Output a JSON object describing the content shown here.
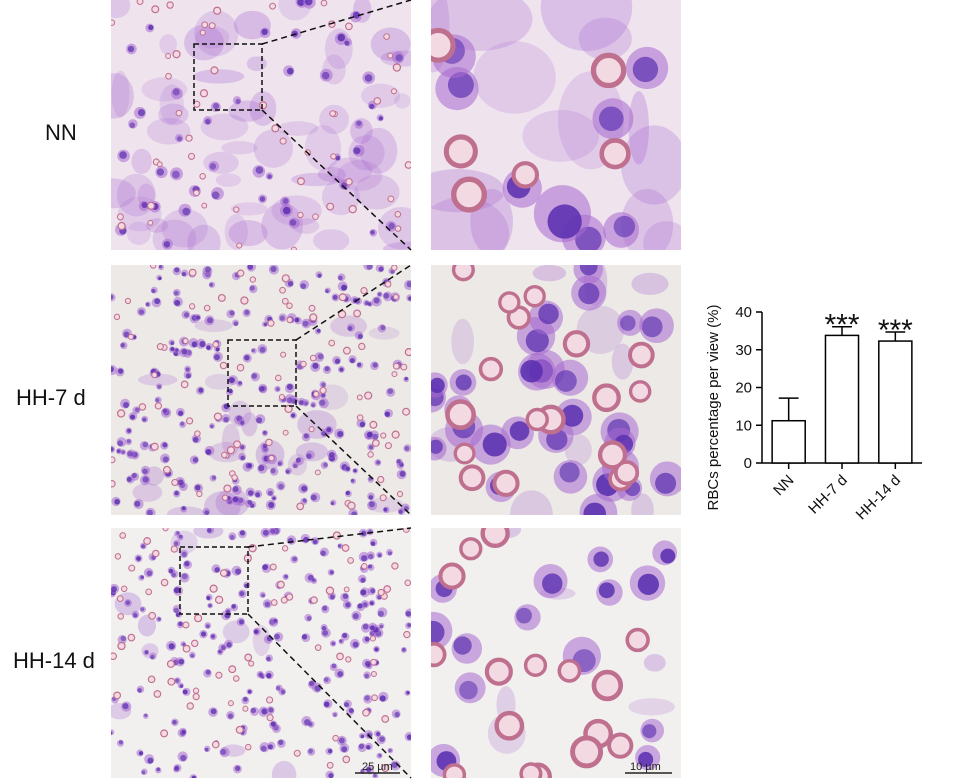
{
  "rows": [
    {
      "label": "NN",
      "scale_low": "",
      "scale_zoom": ""
    },
    {
      "label": "HH-7 d",
      "scale_low": "",
      "scale_zoom": ""
    },
    {
      "label": "HH-14 d",
      "scale_low": "25 µm",
      "scale_zoom": "10 µm"
    }
  ],
  "colors": {
    "stain_background": "#efe3ee",
    "stain_background_dense": "#ece9e6",
    "rbc": "#c0708f",
    "nucleus_dark": "#5a2fb0",
    "cytoplasm": "#a86ad0"
  },
  "chart_data": {
    "type": "bar",
    "categories": [
      "NN",
      "HH-7 d",
      "HH-14 d"
    ],
    "values": [
      11.2,
      33.8,
      32.3
    ],
    "errors": [
      6.0,
      2.3,
      2.4
    ],
    "significance": [
      "",
      "***",
      "***"
    ],
    "title": "",
    "xlabel": "",
    "ylabel": "RBCs percentage per view (%)",
    "ylim": [
      0,
      40
    ],
    "yticks": [
      "0",
      "10",
      "20",
      "30",
      "40"
    ],
    "bar_fill": "#ffffff",
    "bar_stroke": "#000000",
    "grid": false
  }
}
